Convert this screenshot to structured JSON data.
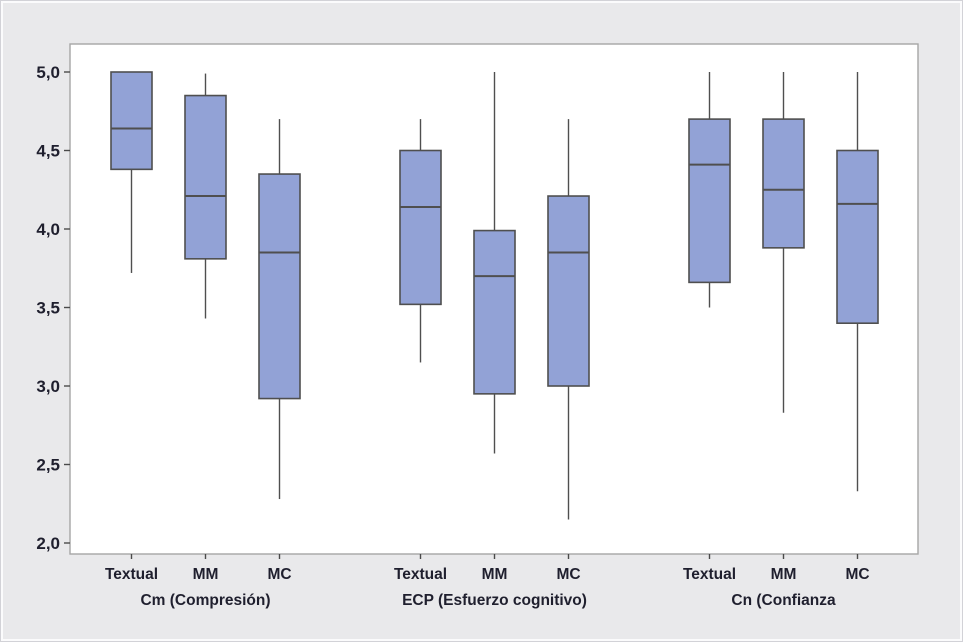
{
  "window": {
    "background_note": "plain graph window, no title bar or toolbar visible"
  },
  "colors": {
    "canvas_bg": "#e9e9eb",
    "frame_border": "#d2d2d7",
    "frame_inner": "#fbfbfc",
    "plot_bg": "#ffffff",
    "plot_border": "#a6a6a6",
    "box_fill": "#92a2d6",
    "box_stroke": "#4f4f4f",
    "whisker_stroke": "#4f4f4f",
    "tick_color": "#4a4a4a",
    "text_color": "#1f1f2e"
  },
  "chart_data": {
    "type": "boxplot",
    "title": "",
    "xlabel": "",
    "ylabel": "",
    "grid": false,
    "legend": "none",
    "ylim": [
      2.0,
      5.0
    ],
    "decimal_separator": ",",
    "y_ticks": [
      {
        "value": 5.0,
        "label": "5,0"
      },
      {
        "value": 4.5,
        "label": "4,5"
      },
      {
        "value": 4.0,
        "label": "4,0"
      },
      {
        "value": 3.5,
        "label": "3,5"
      },
      {
        "value": 3.0,
        "label": "3,0"
      },
      {
        "value": 2.5,
        "label": "2,5"
      },
      {
        "value": 2.0,
        "label": "2,0"
      }
    ],
    "groups": [
      {
        "label": "Cm (Compresión)",
        "boxes": [
          {
            "label": "Textual",
            "whisker_low": 3.72,
            "q1": 4.38,
            "median": 4.64,
            "q3": 5.0,
            "whisker_high": 5.0
          },
          {
            "label": "MM",
            "whisker_low": 3.43,
            "q1": 3.81,
            "median": 4.21,
            "q3": 4.85,
            "whisker_high": 4.99
          },
          {
            "label": "MC",
            "whisker_low": 2.28,
            "q1": 2.92,
            "median": 3.85,
            "q3": 4.35,
            "whisker_high": 4.7
          }
        ]
      },
      {
        "label": "ECP (Esfuerzo cognitivo)",
        "boxes": [
          {
            "label": "Textual",
            "whisker_low": 3.15,
            "q1": 3.52,
            "median": 4.14,
            "q3": 4.5,
            "whisker_high": 4.7
          },
          {
            "label": "MM",
            "whisker_low": 2.57,
            "q1": 2.95,
            "median": 3.7,
            "q3": 3.99,
            "whisker_high": 5.0
          },
          {
            "label": "MC",
            "whisker_low": 2.15,
            "q1": 3.0,
            "median": 3.85,
            "q3": 4.21,
            "whisker_high": 4.7
          }
        ]
      },
      {
        "label": "Cn (Confianza",
        "boxes": [
          {
            "label": "Textual",
            "whisker_low": 3.5,
            "q1": 3.66,
            "median": 4.41,
            "q3": 4.7,
            "whisker_high": 5.0
          },
          {
            "label": "MM",
            "whisker_low": 2.83,
            "q1": 3.88,
            "median": 4.25,
            "q3": 4.7,
            "whisker_high": 5.0
          },
          {
            "label": "MC",
            "whisker_low": 2.33,
            "q1": 3.4,
            "median": 4.16,
            "q3": 4.5,
            "whisker_high": 5.0
          }
        ]
      }
    ]
  }
}
